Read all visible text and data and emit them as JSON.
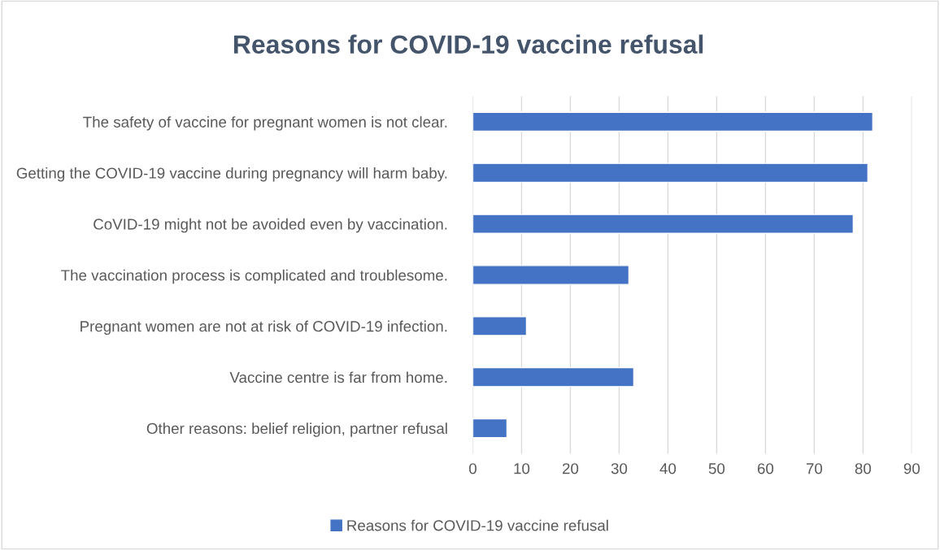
{
  "chart_data": {
    "type": "bar",
    "orientation": "horizontal",
    "title": "Reasons for COVID-19 vaccine refusal",
    "categories": [
      "The safety of vaccine for pregnant women is not clear.",
      "Getting the COVID-19 vaccine during pregnancy will harm baby.",
      "CoVID-19 might not be avoided even by vaccination.",
      "The vaccination process is complicated and troublesome.",
      "Pregnant women are not at risk of COVID-19 infection.",
      "Vaccine centre is far from home.",
      "Other reasons: belief religion, partner refusal"
    ],
    "series": [
      {
        "name": "Reasons for COVID-19 vaccine refusal",
        "color": "#4472c4",
        "values": [
          82,
          81,
          78,
          32,
          11,
          33,
          7
        ]
      }
    ],
    "xlim": [
      0,
      90
    ],
    "xticks": [
      0,
      10,
      20,
      30,
      40,
      50,
      60,
      70,
      80,
      90
    ],
    "grid": "x",
    "legend": "bottom"
  }
}
